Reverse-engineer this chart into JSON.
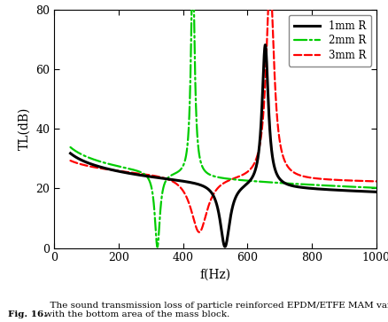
{
  "title": "",
  "xlabel": "f(Hz)",
  "ylabel": "TL(dB)",
  "xlim": [
    0,
    1000
  ],
  "ylim": [
    0,
    80
  ],
  "xticks": [
    0,
    200,
    400,
    600,
    800,
    1000
  ],
  "yticks": [
    0,
    20,
    40,
    60,
    80
  ],
  "fig_caption_bold": "Fig. 16.",
  "fig_caption_normal": "  The sound transmission loss of particle reinforced EPDM/ETFE MAM varies\nwith the bottom area of the mass block.",
  "line1_color": "#000000",
  "line2_color": "#00cc00",
  "line3_color": "#ff0000",
  "legend_labels": [
    "1mm R",
    "2mm R",
    "3mm R"
  ],
  "background_color": "#ffffff",
  "curve1_f_dip": 530,
  "curve1_f_peak": 655,
  "curve1_start_tl": 31,
  "curve1_peak_height": 48,
  "curve2_f_dip": 320,
  "curve2_f_peak": 430,
  "curve2_start_tl": 33,
  "curve2_peak_height": 72,
  "curve3_f_dip": 450,
  "curve3_f_peak": 670,
  "curve3_start_tl": 29,
  "curve3_peak_height": 67
}
